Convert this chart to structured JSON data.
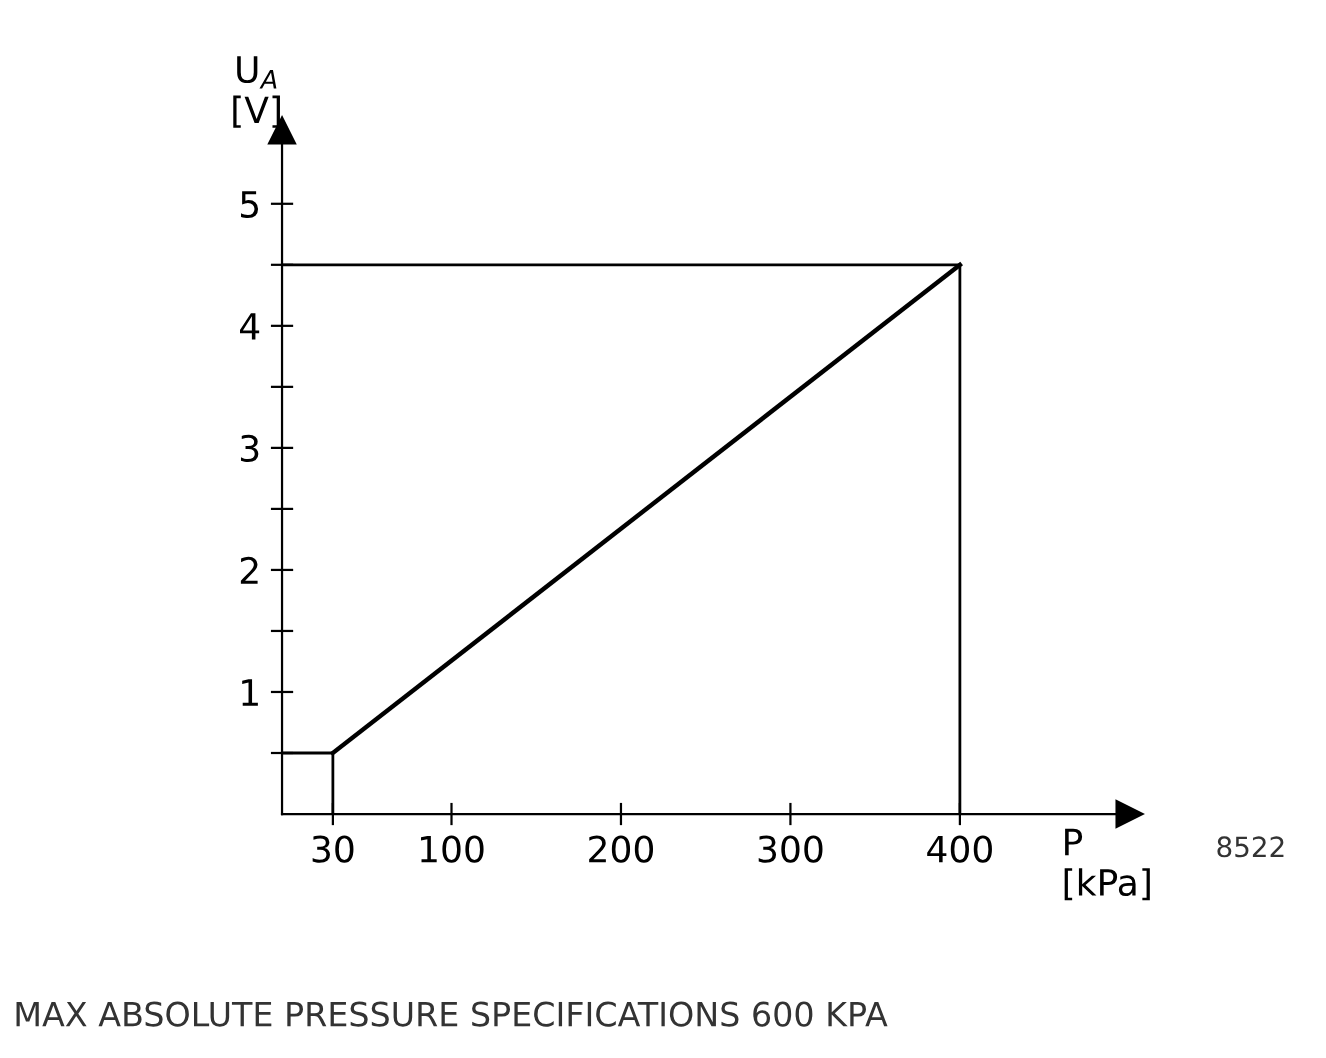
{
  "chart_data": {
    "type": "line",
    "xlabel": "P\n[kPa]",
    "ylabel": "U$_{A}$\n[V]",
    "xlim": [
      0,
      500
    ],
    "ylim": [
      0,
      5.6
    ],
    "xticks": [
      30,
      100,
      200,
      300,
      400
    ],
    "yticks": [
      {
        "value": 0.5,
        "label": null
      },
      1,
      {
        "value": 1.5,
        "label": null
      },
      2,
      {
        "value": 2.5,
        "label": null
      },
      3,
      {
        "value": 3.5,
        "label": null
      },
      4,
      {
        "value": 4.5,
        "label": null
      },
      5
    ],
    "series": [
      {
        "color": "#000000",
        "x": [
          30,
          400
        ],
        "values": [
          0.5,
          4.5
        ]
      },
      {
        "color": "#000000",
        "x": [
          0,
          400,
          400
        ],
        "values": [
          4.5,
          4.5,
          0
        ]
      },
      {
        "color": "#000000",
        "x": [
          0,
          30,
          30
        ],
        "values": [
          0.5,
          0.5,
          0
        ]
      }
    ],
    "grid": false,
    "annotations": [
      "8522",
      "MAX ABSOLUTE PRESSURE SPECIFICATIONS 600 KPA"
    ]
  }
}
